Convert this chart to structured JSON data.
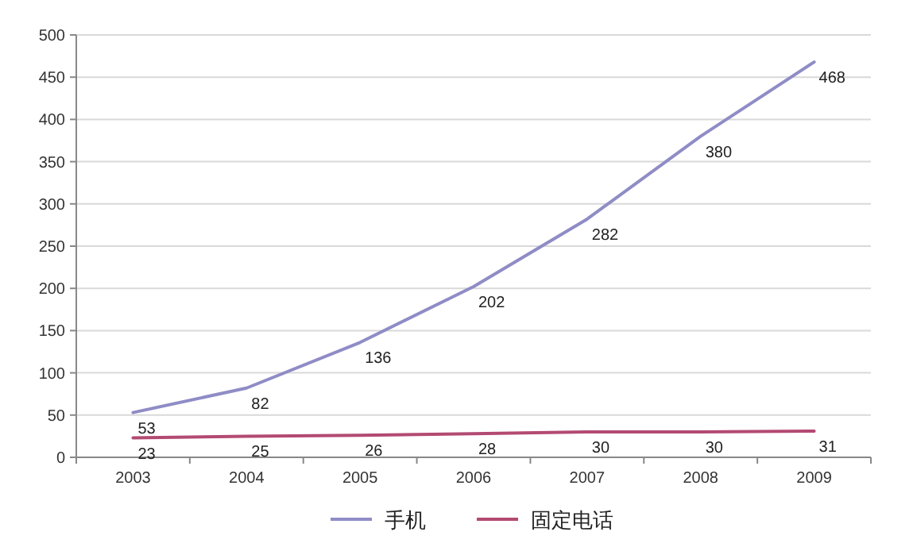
{
  "chart_data": {
    "type": "line",
    "categories": [
      "2003",
      "2004",
      "2005",
      "2006",
      "2007",
      "2008",
      "2009"
    ],
    "series": [
      {
        "name": "手机",
        "color": "#8f8cc6",
        "values": [
          53,
          82,
          136,
          202,
          282,
          380,
          468
        ]
      },
      {
        "name": "固定电话",
        "color": "#b34a72",
        "values": [
          23,
          25,
          26,
          28,
          30,
          30,
          31
        ]
      }
    ],
    "ylim": [
      0,
      500
    ],
    "yticks": [
      0,
      50,
      100,
      150,
      200,
      250,
      300,
      350,
      400,
      450,
      500
    ],
    "grid": "y",
    "legend": "bottom",
    "data_labels": true,
    "marker": "none",
    "line_style": "solid"
  }
}
